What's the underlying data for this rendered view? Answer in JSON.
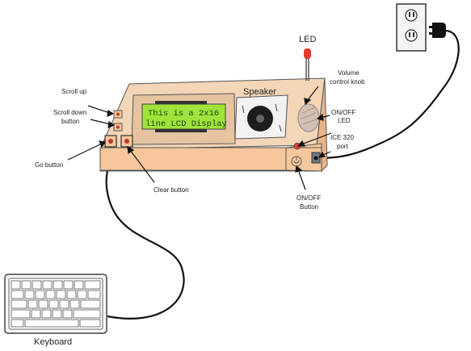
{
  "labels": {
    "led": "LED",
    "volume_line1": "Volume",
    "volume_line2": "control knob",
    "onoff_led_line1": "ON/OFF",
    "onoff_led_line2": "LED",
    "ice_port_line1": "ICE 320",
    "ice_port_line2": "port",
    "onoff_button_line1": "ON/OFF",
    "onoff_button_line2": "Button",
    "speaker": "Speaker",
    "scroll_up": "Scroll up",
    "scroll_down_line1": "Scroll down",
    "scroll_down_line2": "button",
    "go_button": "Go button",
    "clear_button": "Clear  button",
    "keyboard": "Keyboard"
  },
  "lcd": {
    "line1": "This is a 2x16",
    "line2": "line LCD Display"
  },
  "colors": {
    "case_front": "#f6c79c",
    "case_top": "#f3d5b8",
    "case_side": "#e8b48a",
    "lcd_screen": "#9ee43a",
    "led_red": "#e53a2e",
    "cable": "#111111"
  },
  "icons": {
    "outlet": "power-outlet-icon",
    "plug": "power-plug-icon",
    "keyboard": "keyboard-icon"
  }
}
